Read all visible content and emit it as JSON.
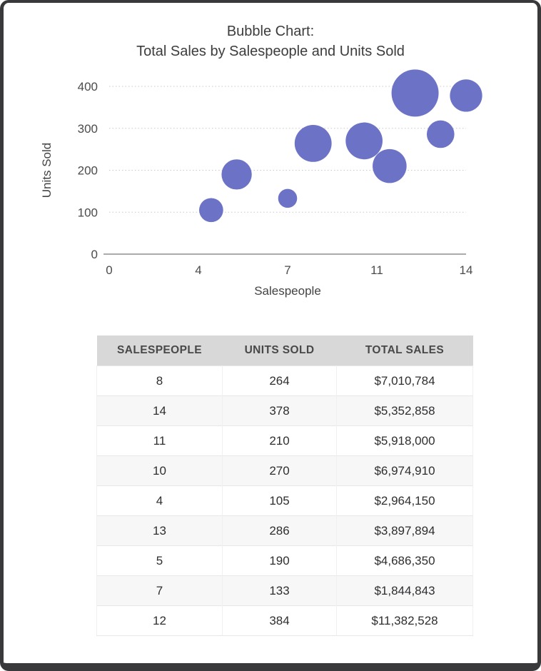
{
  "chart": {
    "title_line1": "Bubble Chart:",
    "title_line2": "Total Sales by Salespeople and Units Sold"
  },
  "chart_data": {
    "type": "scatter",
    "subtype": "bubble",
    "title": "Bubble Chart: Total Sales by Salespeople and Units Sold",
    "xlabel": "Salespeople",
    "ylabel": "Units Sold",
    "xlim": [
      0,
      14
    ],
    "ylim": [
      0,
      400
    ],
    "x_tick_labels": [
      "0",
      "4",
      "7",
      "11",
      "14"
    ],
    "y_tick_values": [
      0,
      100,
      200,
      300,
      400
    ],
    "grid": "horizontal-dotted",
    "legend": "none",
    "bubble_color": "#6c72c6",
    "size_encoding": "total_sales",
    "points": [
      {
        "salespeople": 8,
        "units_sold": 264,
        "total_sales": 7010784
      },
      {
        "salespeople": 14,
        "units_sold": 378,
        "total_sales": 5352858
      },
      {
        "salespeople": 11,
        "units_sold": 210,
        "total_sales": 5918000
      },
      {
        "salespeople": 10,
        "units_sold": 270,
        "total_sales": 6974910
      },
      {
        "salespeople": 4,
        "units_sold": 105,
        "total_sales": 2964150
      },
      {
        "salespeople": 13,
        "units_sold": 286,
        "total_sales": 3897894
      },
      {
        "salespeople": 5,
        "units_sold": 190,
        "total_sales": 4686350
      },
      {
        "salespeople": 7,
        "units_sold": 133,
        "total_sales": 1844843
      },
      {
        "salespeople": 12,
        "units_sold": 384,
        "total_sales": 11382528
      }
    ]
  },
  "table": {
    "headers": [
      "SALESPEOPLE",
      "UNITS SOLD",
      "TOTAL SALES"
    ],
    "rows": [
      [
        "8",
        "264",
        "$7,010,784"
      ],
      [
        "14",
        "378",
        "$5,352,858"
      ],
      [
        "11",
        "210",
        "$5,918,000"
      ],
      [
        "10",
        "270",
        "$6,974,910"
      ],
      [
        "4",
        "105",
        "$2,964,150"
      ],
      [
        "13",
        "286",
        "$3,897,894"
      ],
      [
        "5",
        "190",
        "$4,686,350"
      ],
      [
        "7",
        "133",
        "$1,844,843"
      ],
      [
        "12",
        "384",
        "$11,382,528"
      ]
    ]
  }
}
